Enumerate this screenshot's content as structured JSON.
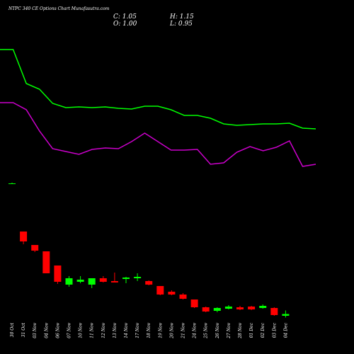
{
  "chart_data": {
    "type": "candlestick",
    "title": "NTPC 340 CE Options Chart Munafasutra.com",
    "header": [
      "C: 1.05",
      "H: 1.15",
      "O: 1.00",
      "L: 0.95"
    ],
    "categories": [
      "30 Oct",
      "31 Oct",
      "03 Nov",
      "04 Nov",
      "06 Nov",
      "07 Nov",
      "10 Nov",
      "11 Nov",
      "12 Nov",
      "13 Nov",
      "14 Nov",
      "17 Nov",
      "18 Nov",
      "19 Nov",
      "20 Nov",
      "21 Nov",
      "24 Nov",
      "25 Nov",
      "26 Nov",
      "27 Nov",
      "28 Nov",
      "01 Dec",
      "02 Dec",
      "03 Dec",
      "04 Dec"
    ],
    "open": [
      4.74,
      3.38,
      3.0,
      2.82,
      2.42,
      1.88,
      1.96,
      1.88,
      2.06,
      1.98,
      2.04,
      2.06,
      1.98,
      1.84,
      1.68,
      1.6,
      1.46,
      1.24,
      1.14,
      1.2,
      1.24,
      1.26,
      1.22,
      1.22,
      1.0
    ],
    "high": [
      4.76,
      3.38,
      3.0,
      2.82,
      2.42,
      2.12,
      2.12,
      2.06,
      2.12,
      2.22,
      2.1,
      2.2,
      2.0,
      1.84,
      1.72,
      1.64,
      1.46,
      1.26,
      1.24,
      1.3,
      1.28,
      1.28,
      1.32,
      1.24,
      1.15
    ],
    "low": [
      4.72,
      3.02,
      2.8,
      2.2,
      1.9,
      1.82,
      1.92,
      1.78,
      1.94,
      1.94,
      1.92,
      1.98,
      1.86,
      1.58,
      1.58,
      1.46,
      1.22,
      1.1,
      1.1,
      1.18,
      1.16,
      1.16,
      1.2,
      1.0,
      0.95
    ],
    "close": [
      4.74,
      3.1,
      2.84,
      2.2,
      1.96,
      2.06,
      2.02,
      2.06,
      1.96,
      1.94,
      2.08,
      2.1,
      1.88,
      1.6,
      1.6,
      1.48,
      1.24,
      1.12,
      1.22,
      1.26,
      1.18,
      1.18,
      1.28,
      1.02,
      1.05
    ],
    "up_color": "#00ff00",
    "down_color": "#ff0000",
    "lines": [
      {
        "color": "#00ff00",
        "values": [
          8.52,
          8.52,
          7.56,
          7.4,
          7.0,
          6.88,
          6.9,
          6.88,
          6.9,
          6.86,
          6.84,
          6.92,
          6.92,
          6.82,
          6.66,
          6.66,
          6.58,
          6.42,
          6.38,
          6.4,
          6.42,
          6.42,
          6.44,
          6.3,
          6.28
        ]
      },
      {
        "color": "#cc00cc",
        "values": [
          7.02,
          7.02,
          6.82,
          6.22,
          5.72,
          5.64,
          5.56,
          5.7,
          5.74,
          5.72,
          5.92,
          6.16,
          5.92,
          5.68,
          5.68,
          5.7,
          5.28,
          5.32,
          5.62,
          5.78,
          5.66,
          5.76,
          5.94,
          5.22,
          5.28
        ]
      }
    ],
    "ylim": [
      -0.08,
      9.92
    ]
  }
}
